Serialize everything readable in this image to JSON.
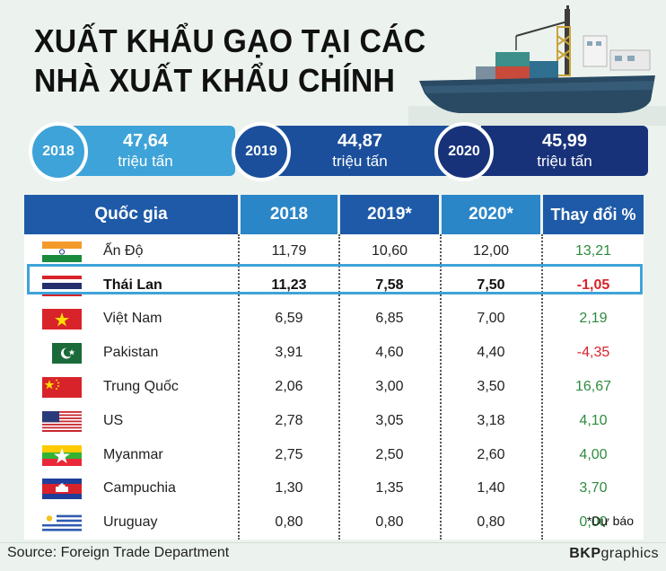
{
  "title": {
    "line1": "XUẤT KHẨU GẠO TẠI CÁC",
    "line2": "NHÀ XUẤT KHẨU CHÍNH"
  },
  "summary": [
    {
      "year": "2018",
      "value": "47,64",
      "unit": "triệu tấn"
    },
    {
      "year": "2019",
      "value": "44,87",
      "unit": "triệu tấn"
    },
    {
      "year": "2020",
      "value": "45,99",
      "unit": "triệu tấn"
    }
  ],
  "colors": {
    "header_dark": "#1e5aa8",
    "header_light": "#2b86c8",
    "strip_light": "#3ea3d8",
    "strip_dark": "#1b4f9c",
    "strip_navy": "#18327a",
    "positive": "#2e8b3e",
    "negative": "#d8232a",
    "highlight": "#3ea3d8"
  },
  "chart_data": {
    "type": "table",
    "columns": [
      "Quốc gia",
      "2018",
      "2019*",
      "2020*",
      "Thay đổi %"
    ],
    "rows": [
      {
        "country": "Ấn Độ",
        "flag": "india-flag-icon",
        "y2018": "11,79",
        "y2019": "10,60",
        "y2020": "12,00",
        "change": "13,21",
        "highlight": false
      },
      {
        "country": "Thái Lan",
        "flag": "thailand-flag-icon",
        "y2018": "11,23",
        "y2019": "7,58",
        "y2020": "7,50",
        "change": "-1,05",
        "highlight": true
      },
      {
        "country": "Việt Nam",
        "flag": "vietnam-flag-icon",
        "y2018": "6,59",
        "y2019": "6,85",
        "y2020": "7,00",
        "change": "2,19",
        "highlight": false
      },
      {
        "country": "Pakistan",
        "flag": "pakistan-flag-icon",
        "y2018": "3,91",
        "y2019": "4,60",
        "y2020": "4,40",
        "change": "-4,35",
        "highlight": false
      },
      {
        "country": "Trung Quốc",
        "flag": "china-flag-icon",
        "y2018": "2,06",
        "y2019": "3,00",
        "y2020": "3,50",
        "change": "16,67",
        "highlight": false
      },
      {
        "country": "US",
        "flag": "usa-flag-icon",
        "y2018": "2,78",
        "y2019": "3,05",
        "y2020": "3,18",
        "change": "4,10",
        "highlight": false
      },
      {
        "country": "Myanmar",
        "flag": "myanmar-flag-icon",
        "y2018": "2,75",
        "y2019": "2,50",
        "y2020": "2,60",
        "change": "4,00",
        "highlight": false
      },
      {
        "country": "Campuchia",
        "flag": "cambodia-flag-icon",
        "y2018": "1,30",
        "y2019": "1,35",
        "y2020": "1,40",
        "change": "3,70",
        "highlight": false
      },
      {
        "country": "Uruguay",
        "flag": "uruguay-flag-icon",
        "y2018": "0,80",
        "y2019": "0,80",
        "y2020": "0,80",
        "change": "0,00",
        "highlight": false
      }
    ]
  },
  "note": "*Dự báo",
  "source": "Source: Foreign Trade Department",
  "brand": {
    "bold": "BKP",
    "rest": "graphics"
  }
}
